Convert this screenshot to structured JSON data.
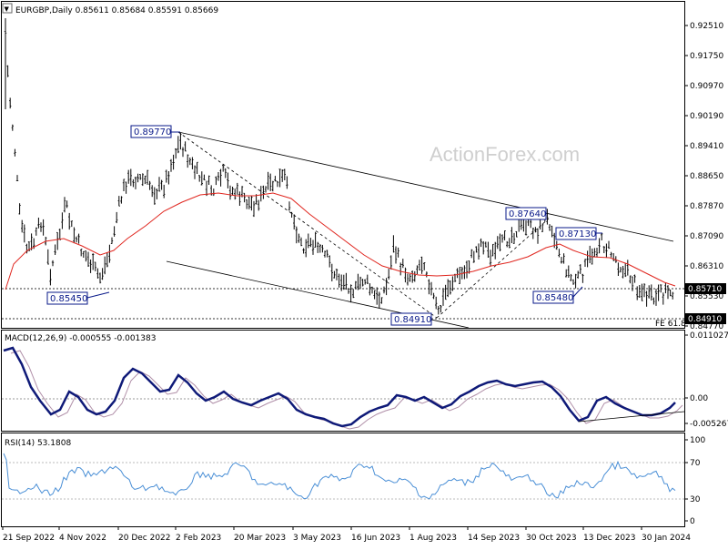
{
  "header": {
    "collapse_label": "▼",
    "title": "EURGBP,Daily  0.85611 0.85684 0.85591 0.85669"
  },
  "watermark": "ActionForex.com",
  "colors": {
    "price_bar": "#000000",
    "ma": "#e0261f",
    "macd": "#0f1a78",
    "macd_signal": "#b08fa8",
    "rsi": "#4a8fd6",
    "label_border": "#0a1a8a",
    "axis_tag": "#000000"
  },
  "price_axis": {
    "ticks": [
      "0.92510",
      "0.91750",
      "0.90970",
      "0.90190",
      "0.89410",
      "0.88650",
      "0.87870",
      "0.87090",
      "0.86310",
      "0.85530",
      "0.84770"
    ],
    "current_tag": "0.85710",
    "low_tag": "0.84910"
  },
  "annotations": {
    "peak": "0.89770",
    "left_low": "0.85450",
    "aug_low": "0.84910",
    "oct_high": "0.87640",
    "nov_high": "0.87130",
    "nov_low": "0.85480",
    "fe": "FE 61.8"
  },
  "macd_panel": {
    "label": "MACD(12,26,9) -0.000555 -0.001383",
    "ticks": [
      "0.011027",
      "0.00",
      "-0.005267"
    ]
  },
  "rsi_panel": {
    "label": "RSI(14) 53.1808",
    "ticks": [
      "100",
      "70",
      "30",
      "0"
    ]
  },
  "time_axis": {
    "labels": [
      "21 Sep 2022",
      "4 Nov 2022",
      "20 Dec 2022",
      "2 Feb 2023",
      "20 Mar 2023",
      "3 May 2023",
      "16 Jun 2023",
      "1 Aug 2023",
      "14 Sep 2023",
      "30 Oct 2023",
      "13 Dec 2023",
      "30 Jan 2024"
    ]
  },
  "chart_data": {
    "type": "line",
    "title": "EURGBP,Daily",
    "x": [
      "21 Sep 2022",
      "4 Nov 2022",
      "20 Dec 2022",
      "2 Feb 2023",
      "20 Mar 2023",
      "3 May 2023",
      "16 Jun 2023",
      "1 Aug 2023",
      "14 Sep 2023",
      "30 Oct 2023",
      "13 Dec 2023",
      "30 Jan 2024"
    ],
    "series": [
      {
        "name": "EURGBP",
        "values": [
          0.884,
          0.866,
          0.874,
          0.887,
          0.884,
          0.872,
          0.858,
          0.856,
          0.866,
          0.87,
          0.867,
          0.857
        ]
      }
    ],
    "ohlc_last": {
      "open": 0.85611,
      "high": 0.85684,
      "low": 0.85591,
      "close": 0.85669
    },
    "ylim": [
      0.8477,
      0.9251
    ],
    "key_levels": [
      0.8977,
      0.8764,
      0.8713,
      0.8571,
      0.8548,
      0.8545,
      0.8491
    ],
    "indicators": {
      "macd": {
        "params": "12,26,9",
        "value": -0.000555,
        "signal": -0.001383,
        "ylim": [
          -0.005267,
          0.011027
        ]
      },
      "rsi": {
        "period": 14,
        "value": 53.1808,
        "ylim": [
          0,
          100
        ],
        "levels": [
          30,
          70
        ]
      }
    }
  }
}
